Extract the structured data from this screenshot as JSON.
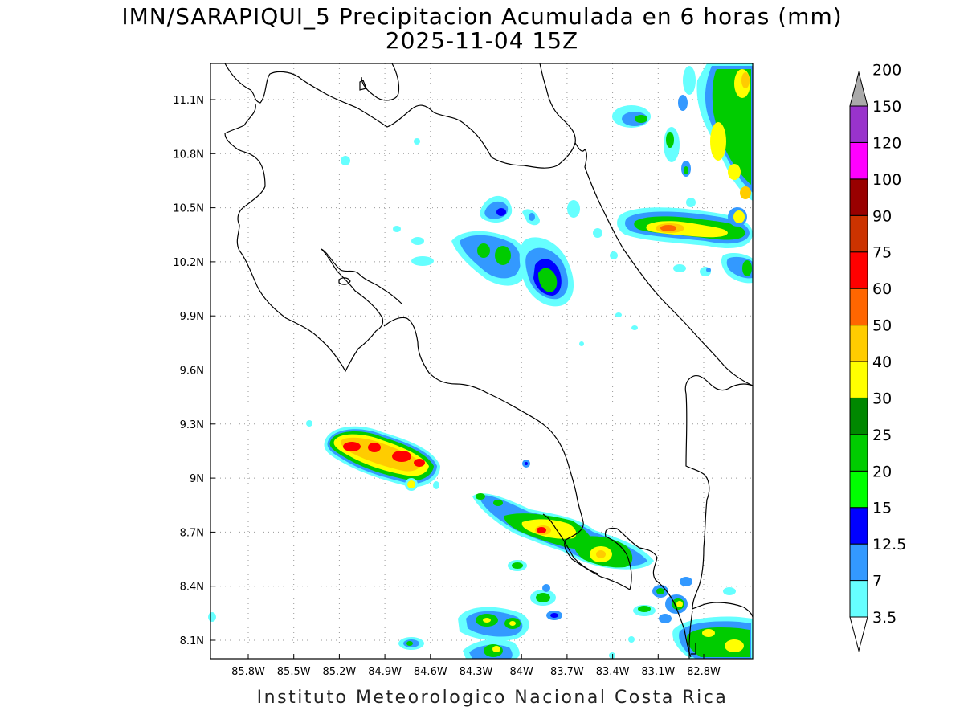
{
  "title": {
    "line1": "IMN/SARAPIQUI_5 Precipitacion Acumulada en 6 horas (mm)",
    "line2": "2025-11-04 15Z"
  },
  "footer": "Instituto Meteorologico Nacional Costa Rica",
  "map": {
    "lon_ticks": [
      "85.8W",
      "85.5W",
      "85.2W",
      "84.9W",
      "84.6W",
      "84.3W",
      "84W",
      "83.7W",
      "83.4W",
      "83.1W",
      "82.8W"
    ],
    "lat_ticks": [
      "11.1N",
      "10.8N",
      "10.5N",
      "10.2N",
      "9.9N",
      "9.6N",
      "9.3N",
      "9N",
      "8.7N",
      "8.4N",
      "8.1N"
    ],
    "gridlines": "dotted"
  },
  "colorbar": {
    "levels": [
      "3.5",
      "7",
      "12.5",
      "15",
      "20",
      "25",
      "30",
      "40",
      "50",
      "60",
      "75",
      "90",
      "100",
      "120",
      "150",
      "200"
    ],
    "colors": [
      "#66ffff",
      "#3399ff",
      "#0000ff",
      "#00ff00",
      "#00cc00",
      "#008800",
      "#ffff00",
      "#ffcc00",
      "#ff6600",
      "#ff0000",
      "#cc3300",
      "#990000",
      "#ff00ff",
      "#9933cc",
      "#f2f2f2",
      "#aaaaaa"
    ]
  }
}
